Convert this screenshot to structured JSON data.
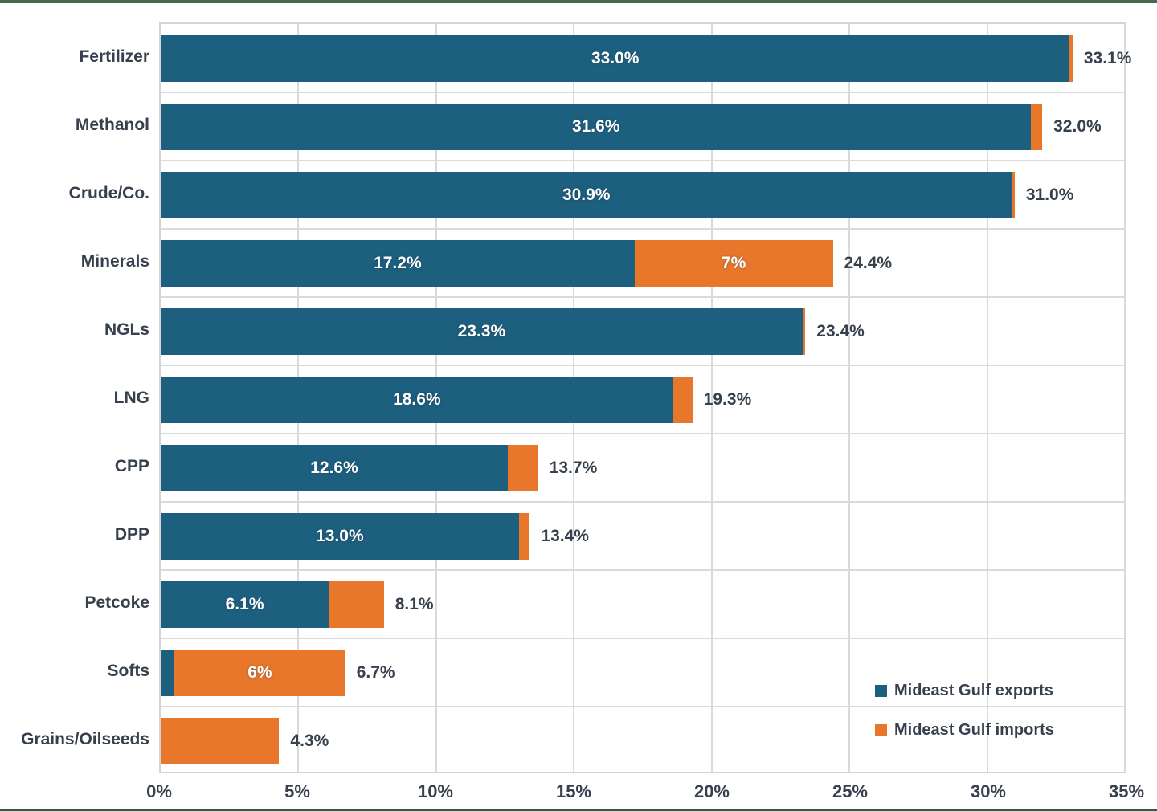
{
  "chart_data": {
    "type": "bar",
    "orientation": "horizontal-stacked",
    "title": "",
    "xlabel": "",
    "ylabel": "",
    "xlim": [
      0,
      35
    ],
    "grid": true,
    "x_ticks": [
      "0%",
      "5%",
      "10%",
      "15%",
      "20%",
      "25%",
      "30%",
      "35%"
    ],
    "categories": [
      "Fertilizer",
      "Methanol",
      "Crude/Co.",
      "Minerals",
      "NGLs",
      "LNG",
      "CPP",
      "DPP",
      "Petcoke",
      "Softs",
      "Grains/Oilseeds"
    ],
    "series": [
      {
        "name": "Mideast Gulf exports",
        "color": "#1d5f7f",
        "values": [
          33.0,
          31.6,
          30.9,
          17.2,
          23.3,
          18.6,
          12.6,
          13.0,
          6.1,
          0.5,
          0.0
        ]
      },
      {
        "name": "Mideast Gulf imports",
        "color": "#e8772c",
        "values": [
          0.1,
          0.4,
          0.1,
          7.2,
          0.1,
          0.7,
          1.1,
          0.4,
          2.0,
          6.2,
          4.3
        ]
      }
    ],
    "rows": [
      {
        "label": "Fertilizer",
        "export": 33.0,
        "import": 0.1,
        "export_label": "33.0%",
        "import_label": "",
        "total_label": "33.1%"
      },
      {
        "label": "Methanol",
        "export": 31.6,
        "import": 0.4,
        "export_label": "31.6%",
        "import_label": "",
        "total_label": "32.0%"
      },
      {
        "label": "Crude/Co.",
        "export": 30.9,
        "import": 0.1,
        "export_label": "30.9%",
        "import_label": "",
        "total_label": "31.0%"
      },
      {
        "label": "Minerals",
        "export": 17.2,
        "import": 7.2,
        "export_label": "17.2%",
        "import_label": "7%",
        "total_label": "24.4%"
      },
      {
        "label": "NGLs",
        "export": 23.3,
        "import": 0.1,
        "export_label": "23.3%",
        "import_label": "",
        "total_label": "23.4%"
      },
      {
        "label": "LNG",
        "export": 18.6,
        "import": 0.7,
        "export_label": "18.6%",
        "import_label": "",
        "total_label": "19.3%"
      },
      {
        "label": "CPP",
        "export": 12.6,
        "import": 1.1,
        "export_label": "12.6%",
        "import_label": "",
        "total_label": "13.7%"
      },
      {
        "label": "DPP",
        "export": 13.0,
        "import": 0.4,
        "export_label": "13.0%",
        "import_label": "",
        "total_label": "13.4%"
      },
      {
        "label": "Petcoke",
        "export": 6.1,
        "import": 2.0,
        "export_label": "6.1%",
        "import_label": "",
        "total_label": "8.1%"
      },
      {
        "label": "Softs",
        "export": 0.5,
        "import": 6.2,
        "export_label": "",
        "import_label": "6%",
        "total_label": "6.7%"
      },
      {
        "label": "Grains/Oilseeds",
        "export": 0.0,
        "import": 4.3,
        "export_label": "",
        "import_label": "",
        "total_label": "4.3%"
      }
    ],
    "legend": {
      "position": "bottom-right",
      "items": [
        {
          "label": "Mideast Gulf exports",
          "color": "#1d5f7f"
        },
        {
          "label": "Mideast Gulf imports",
          "color": "#e8772c"
        }
      ]
    },
    "colors": {
      "exports_blue": "#1d5f7f",
      "imports_orange": "#e8772c",
      "text_dark": "#37414d",
      "gridline": "#dadada",
      "frame_green_top": "#48694e",
      "frame_green_bottom": "#2e5b4c"
    }
  }
}
